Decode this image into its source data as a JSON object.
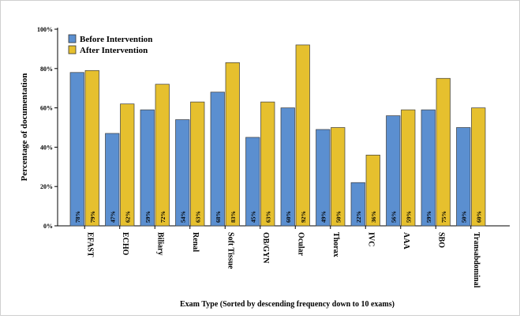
{
  "chart_data": {
    "type": "bar",
    "categories": [
      "EFAST",
      "ECHO",
      "Biliary",
      "Renal",
      "Soft Tissue",
      "OB/GYN",
      "Ocular",
      "Thorax",
      "IVC",
      "AAA",
      "SBO",
      "Transabdominal"
    ],
    "series": [
      {
        "name": "Before Intervention",
        "color": "#5b8fd0",
        "values": [
          78,
          47,
          59,
          54,
          68,
          45,
          60,
          49,
          22,
          56,
          59,
          50
        ],
        "labels": [
          "78%",
          "47%",
          "59%",
          "54%",
          "68%",
          "45%",
          "60%",
          "49%",
          "22%",
          "56%",
          "59%",
          "50%"
        ]
      },
      {
        "name": "After Intervention",
        "color": "#e6c02e",
        "values": [
          79,
          62,
          72,
          63,
          83,
          63,
          92,
          50,
          36,
          59,
          75,
          60
        ],
        "labels": [
          "79%",
          "62%",
          "72%",
          "63%",
          "83%",
          "63%",
          "92%",
          "50%",
          "36%",
          "59%",
          "75%",
          "60%"
        ]
      }
    ],
    "ylim": [
      0,
      100
    ],
    "yticks": [
      0,
      20,
      40,
      60,
      80,
      100
    ],
    "ytick_labels": [
      "0%",
      "20%",
      "40%",
      "60%",
      "80%",
      "100%"
    ],
    "ylabel": "Percentage of documentation",
    "xlabel": "Exam Type (Sorted by descending frequency down to 10 exams)",
    "title": "",
    "legend_position": "top-left",
    "grid": false
  }
}
